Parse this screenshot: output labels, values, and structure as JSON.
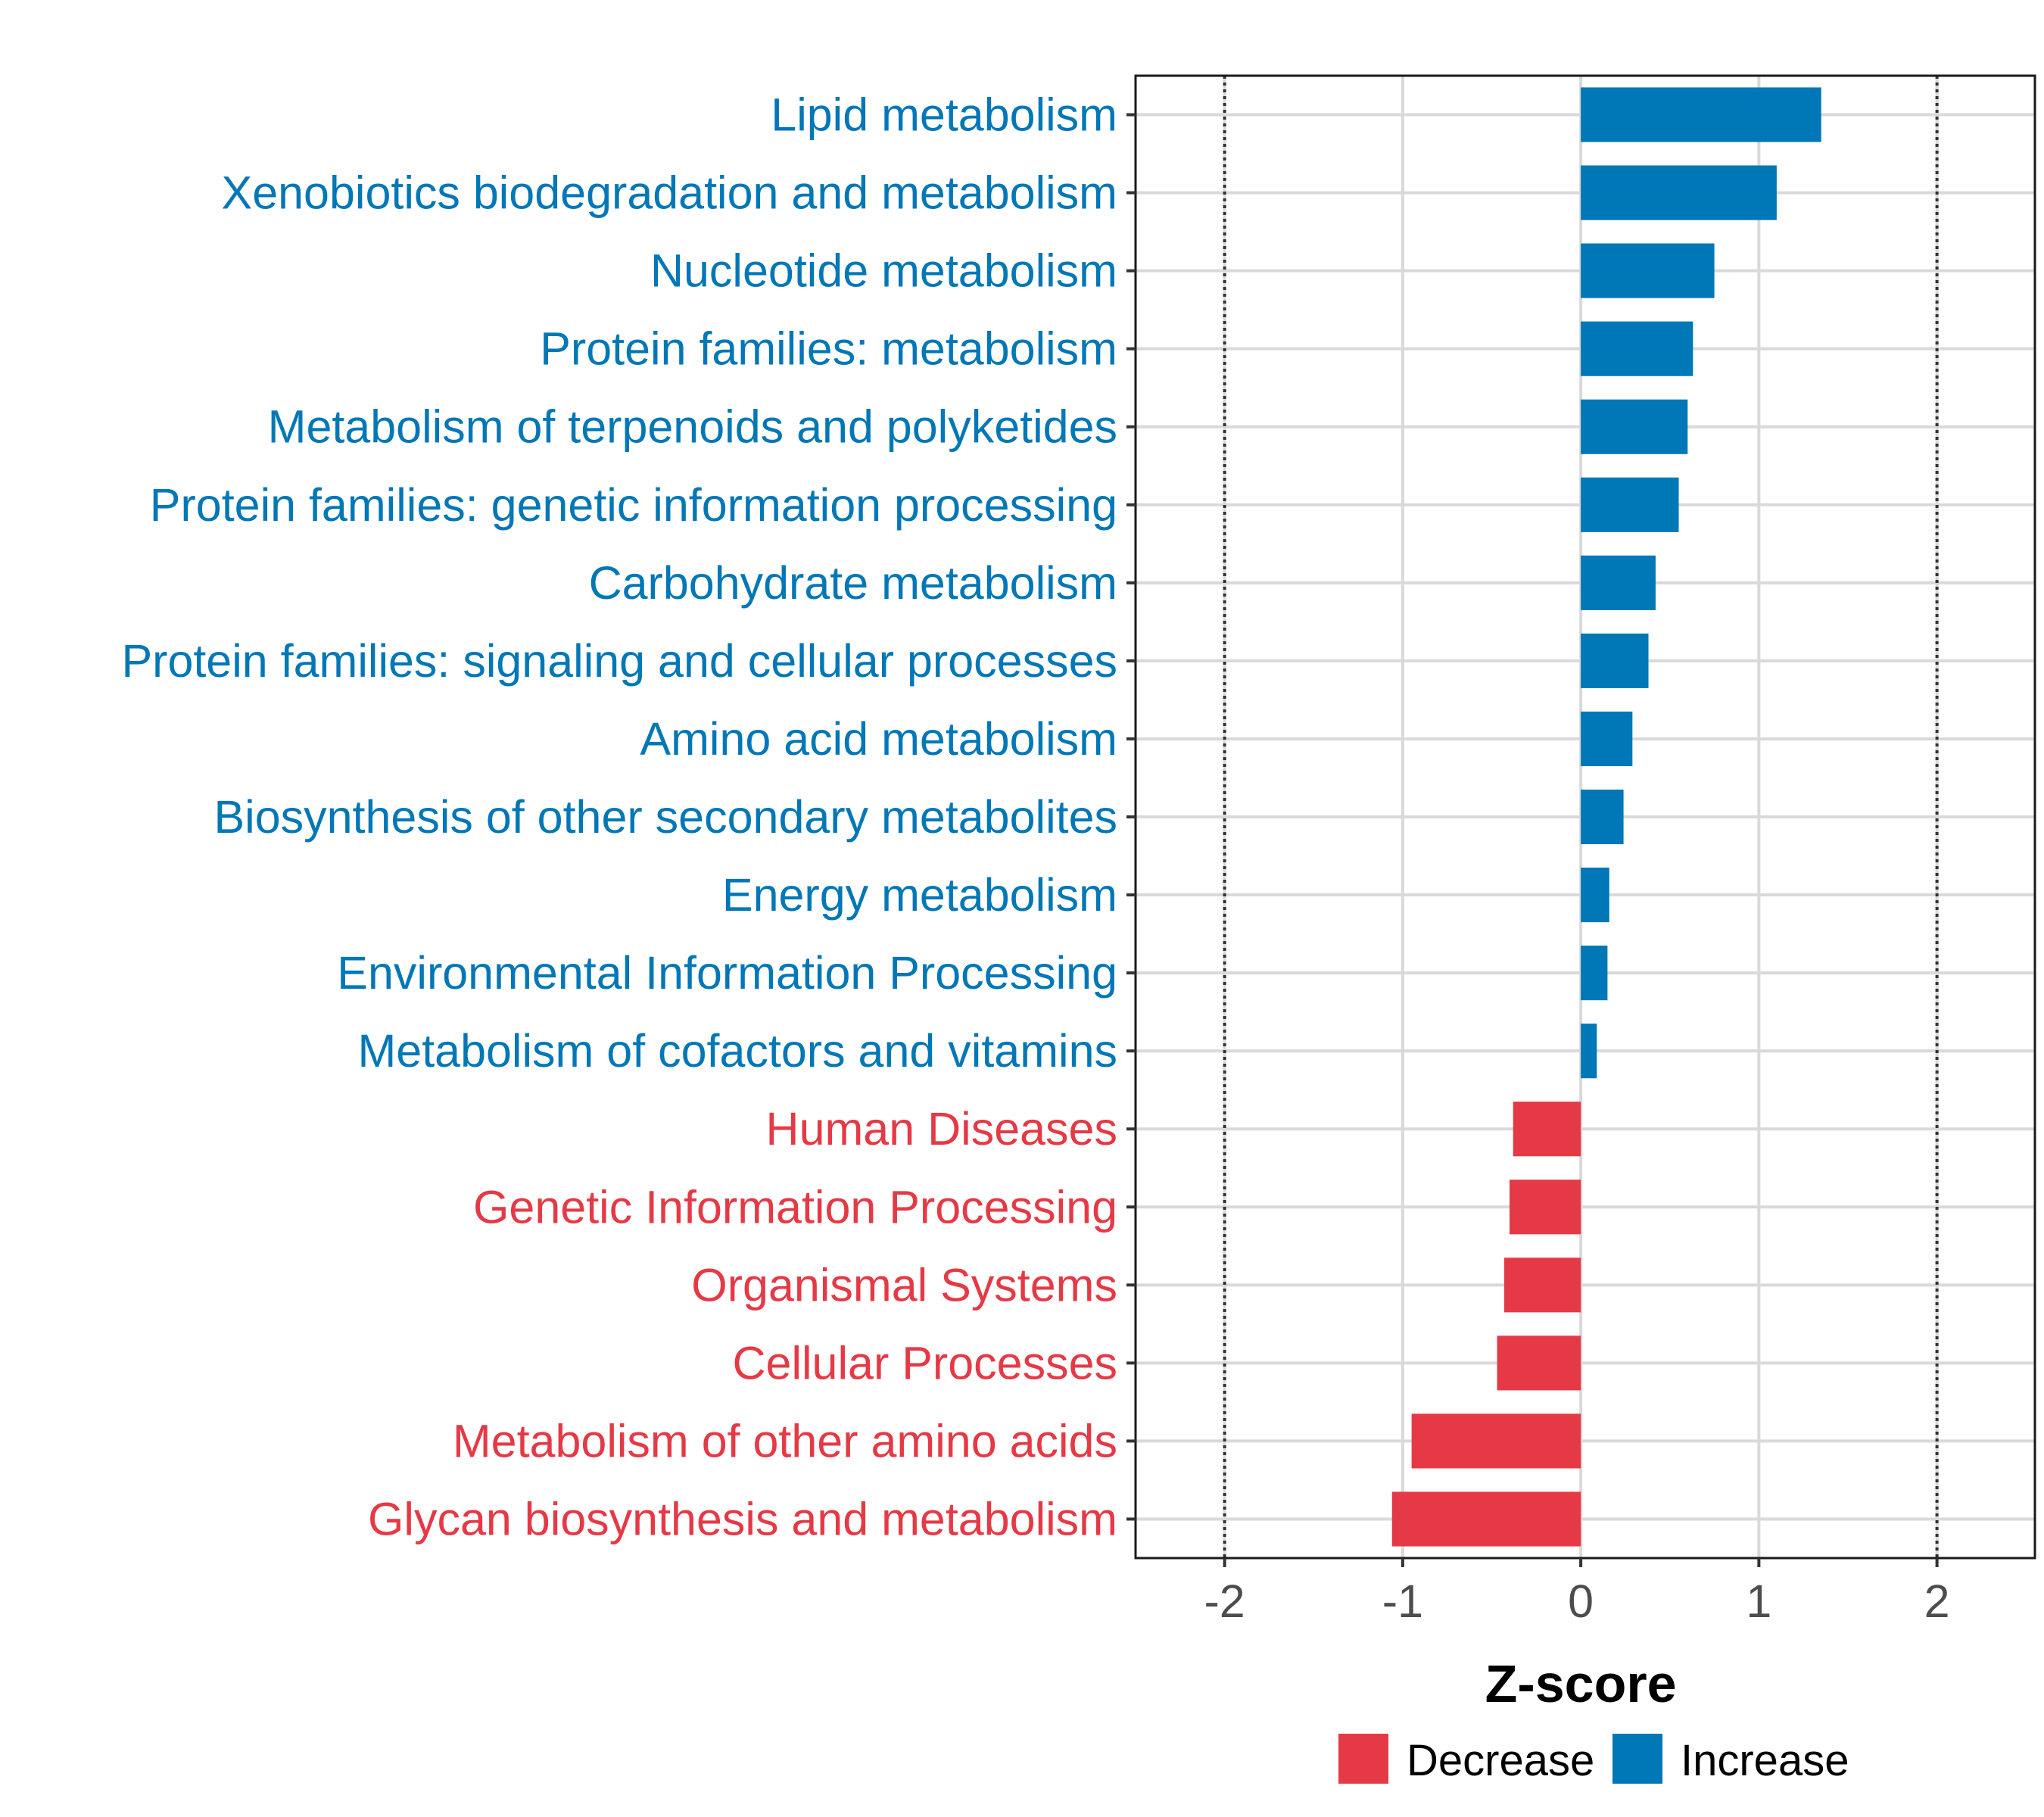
{
  "chart_data": {
    "type": "bar",
    "orientation": "horizontal",
    "xlabel": "Z-score",
    "ylabel": "",
    "xlim": [
      -2.5,
      2.55
    ],
    "xticks": [
      -2,
      -1,
      0,
      1,
      2
    ],
    "xtick_labels": [
      "-2",
      "-1",
      "0",
      "1",
      "2"
    ],
    "reference_lines": [
      -2,
      2
    ],
    "grid": true,
    "legend_position": "bottom",
    "colors": {
      "Decrease": "#e53946",
      "Increase": "#0077b6"
    },
    "legend": [
      {
        "label": "Decrease",
        "color": "#e53946"
      },
      {
        "label": "Increase",
        "color": "#0077b6"
      }
    ],
    "categories": [
      "Lipid metabolism",
      "Xenobiotics biodegradation and metabolism",
      "Nucleotide metabolism",
      "Protein families: metabolism",
      "Metabolism of terpenoids and polyketides",
      "Protein families: genetic information processing",
      "Carbohydrate metabolism",
      "Protein families: signaling and cellular processes",
      "Amino acid metabolism",
      "Biosynthesis of other secondary metabolites",
      "Energy metabolism",
      "Environmental Information Processing",
      "Metabolism of cofactors and vitamins",
      "Human Diseases",
      "Genetic Information Processing",
      "Organismal Systems",
      "Cellular Processes",
      "Metabolism of other amino acids",
      "Glycan biosynthesis and metabolism"
    ],
    "values": [
      1.35,
      1.1,
      0.75,
      0.63,
      0.6,
      0.55,
      0.42,
      0.38,
      0.29,
      0.24,
      0.16,
      0.15,
      0.09,
      -0.38,
      -0.4,
      -0.43,
      -0.47,
      -0.95,
      -1.06
    ],
    "groups": [
      "Increase",
      "Increase",
      "Increase",
      "Increase",
      "Increase",
      "Increase",
      "Increase",
      "Increase",
      "Increase",
      "Increase",
      "Increase",
      "Increase",
      "Increase",
      "Decrease",
      "Decrease",
      "Decrease",
      "Decrease",
      "Decrease",
      "Decrease"
    ]
  }
}
